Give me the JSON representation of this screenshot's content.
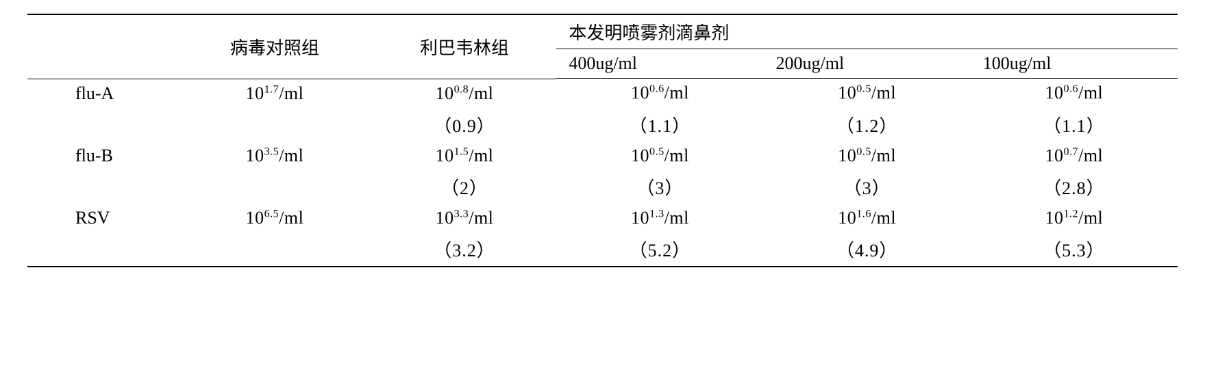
{
  "header": {
    "blank": "",
    "virus_control": "病毒对照组",
    "ribavirin": "利巴韦林组",
    "spray_title": "本发明喷雾剂滴鼻剂",
    "dose400": "400ug/ml",
    "dose200": "200ug/ml",
    "dose100": "100ug/ml"
  },
  "rows": {
    "fluA": {
      "label": "flu-A",
      "virus": {
        "base": "10",
        "exp": "1.7",
        "suffix": "/ml"
      },
      "riba": {
        "base": "10",
        "exp": "0.8",
        "suffix": "/ml"
      },
      "d400": {
        "base": "10",
        "exp": "0.6",
        "suffix": "/ml"
      },
      "d200": {
        "base": "10",
        "exp": "0.5",
        "suffix": "/ml"
      },
      "d100": {
        "base": "10",
        "exp": "0.6",
        "suffix": "/ml"
      },
      "riba_p": "（0.9）",
      "d400_p": "（1.1）",
      "d200_p": "（1.2）",
      "d100_p": "（1.1）"
    },
    "fluB": {
      "label": "flu-B",
      "virus": {
        "base": "10",
        "exp": "3.5",
        "suffix": "/ml"
      },
      "riba": {
        "base": "10",
        "exp": "1.5",
        "suffix": "/ml"
      },
      "d400": {
        "base": "10",
        "exp": "0.5",
        "suffix": "/ml"
      },
      "d200": {
        "base": "10",
        "exp": "0.5",
        "suffix": "/ml"
      },
      "d100": {
        "base": "10",
        "exp": "0.7",
        "suffix": "/ml"
      },
      "riba_p": "（2）",
      "d400_p": "（3）",
      "d200_p": "（3）",
      "d100_p": "（2.8）"
    },
    "rsv": {
      "label": "RSV",
      "virus": {
        "base": "10",
        "exp": "6.5",
        "suffix": "/ml"
      },
      "riba": {
        "base": "10",
        "exp": "3.3",
        "suffix": "/ml"
      },
      "d400": {
        "base": "10",
        "exp": "1.3",
        "suffix": "/ml"
      },
      "d200": {
        "base": "10",
        "exp": "1.6",
        "suffix": "/ml"
      },
      "d100": {
        "base": "10",
        "exp": "1.2",
        "suffix": "/ml"
      },
      "riba_p": "（3.2）",
      "d400_p": "（5.2）",
      "d200_p": "（4.9）",
      "d100_p": "（5.3）"
    }
  }
}
